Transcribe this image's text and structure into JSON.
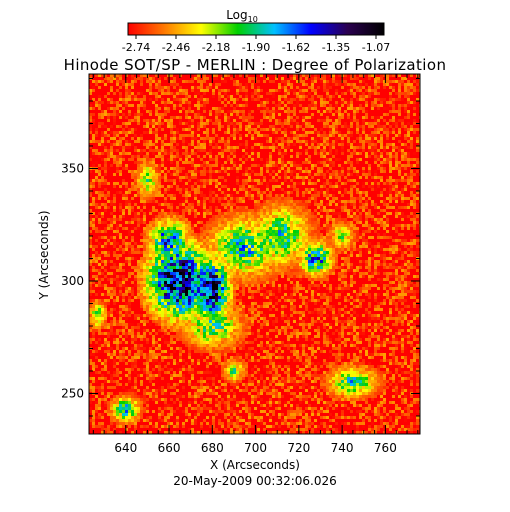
{
  "chart_data": {
    "type": "heatmap",
    "title": "Hinode SOT/SP - MERLIN : Degree of Polarization",
    "colorbar": {
      "label_base": "Log",
      "label_sub": "10",
      "ticks": [
        "-2.74",
        "-2.46",
        "-2.18",
        "-1.90",
        "-1.62",
        "-1.35",
        "-1.07"
      ],
      "range": [
        -2.74,
        -1.07
      ],
      "colors": [
        "#ff0000",
        "#ff7a00",
        "#ffff00",
        "#00d000",
        "#00c0ff",
        "#0000ff",
        "#2a0050",
        "#000000"
      ]
    },
    "xlabel": "X (Arcseconds)",
    "ylabel": "Y (Arcseconds)",
    "xlim": [
      623,
      776
    ],
    "ylim": [
      232,
      392
    ],
    "xticks": [
      640,
      660,
      680,
      700,
      720,
      740,
      760
    ],
    "yticks": [
      250,
      300,
      350
    ],
    "timestamp": "20-May-2009 00:32:06.026",
    "background_value": -2.7,
    "features": [
      {
        "x": 665,
        "y": 300,
        "rx": 16,
        "ry": 18,
        "value": -1.25
      },
      {
        "x": 680,
        "y": 296,
        "rx": 9,
        "ry": 16,
        "value": -1.4
      },
      {
        "x": 660,
        "y": 318,
        "rx": 10,
        "ry": 10,
        "value": -1.7
      },
      {
        "x": 695,
        "y": 315,
        "rx": 18,
        "ry": 14,
        "value": -1.9
      },
      {
        "x": 712,
        "y": 320,
        "rx": 14,
        "ry": 14,
        "value": -1.95
      },
      {
        "x": 680,
        "y": 280,
        "rx": 14,
        "ry": 10,
        "value": -2.0
      },
      {
        "x": 728,
        "y": 310,
        "rx": 8,
        "ry": 8,
        "value": -1.7
      },
      {
        "x": 650,
        "y": 345,
        "rx": 5,
        "ry": 8,
        "value": -2.05
      },
      {
        "x": 745,
        "y": 255,
        "rx": 12,
        "ry": 7,
        "value": -1.95
      },
      {
        "x": 640,
        "y": 243,
        "rx": 7,
        "ry": 6,
        "value": -1.9
      },
      {
        "x": 627,
        "y": 285,
        "rx": 4,
        "ry": 6,
        "value": -2.0
      },
      {
        "x": 690,
        "y": 260,
        "rx": 5,
        "ry": 5,
        "value": -2.1
      },
      {
        "x": 740,
        "y": 320,
        "rx": 6,
        "ry": 6,
        "value": -2.15
      }
    ]
  }
}
